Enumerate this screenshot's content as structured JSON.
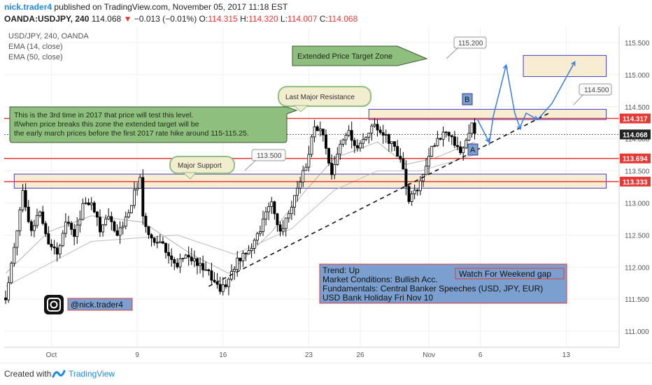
{
  "header": {
    "author": "nick.trader4",
    "published_text": "published on TradingView.com, November 05, 2017 11:18 EST",
    "symbol_line": "OANDA:USDJPY, 240",
    "last_price": "114.068",
    "change": "−0.013 (−0.01%)",
    "o_label": "O:",
    "o_value": "114.315",
    "h_label": "H:",
    "h_value": "114.320",
    "l_label": "L:",
    "l_value": "114.007",
    "c_label": "C:",
    "c_value": "114.068"
  },
  "legend": {
    "symbol": "USD/JPY, 240, OANDA",
    "ema14": "EMA (14, close)",
    "ema50": "EMA (50, close)"
  },
  "annotations": {
    "target_zone": "Extended Price Target Zone",
    "last_major_resistance": "Last Major Resistance",
    "major_support": "Major Support",
    "note_line1": "This is the 3rd time in 2017 that price will test this level.",
    "note_line2": "If/when price breaks this zone the extended target will be",
    "note_line3": "the early march prices before the first 2017 rate hike around 115-115.25.",
    "callout_115200": "115.200",
    "callout_114500": "114.500",
    "callout_113500": "113.500",
    "marker_a": "A",
    "marker_b": "B",
    "info_trend": "Trend: Up",
    "info_market": "Market Conditions: Bullish Acc.",
    "info_fund": "Fundamentals: Central Banker Speeches (USD, JPY, EUR)",
    "info_holiday": "USD Bank Holiday Fri Nov 10",
    "weekend_gap": "Watch For Weekend gap",
    "instagram_handle": "@nick.trader4"
  },
  "footer": {
    "created_with": "Created with",
    "brand": "TradingView"
  },
  "colors": {
    "up": "#000000",
    "down": "#000000",
    "resistance_line": "#e53935",
    "zone_fill": "#f5e6c4",
    "zone_border": "#3f3fbf",
    "callout_green": "#8fbf7f",
    "info_box": "#7b9fcf",
    "arrow_blue": "#3a7be0",
    "ema": "#9e9e9e"
  },
  "chart_data": {
    "type": "candlestick",
    "symbol": "USD/JPY",
    "timeframe": "240",
    "ylim": [
      110.75,
      115.75
    ],
    "y_ticks": [
      111.0,
      111.5,
      112.0,
      112.5,
      113.0,
      113.5,
      114.0,
      114.5,
      115.0,
      115.5
    ],
    "x_ticks": [
      {
        "label": "Oct",
        "idx": 16
      },
      {
        "label": "9",
        "idx": 46
      },
      {
        "label": "16",
        "idx": 76
      },
      {
        "label": "23",
        "idx": 106
      },
      {
        "label": "26",
        "idx": 124
      },
      {
        "label": "Nov",
        "idx": 148
      },
      {
        "label": "6",
        "idx": 166
      },
      {
        "label": "13",
        "idx": 196
      }
    ],
    "n_slots": 215,
    "price_labels": [
      {
        "value": 114.317,
        "text": "114.317",
        "color": "#e53935"
      },
      {
        "value": 114.068,
        "text": "114.068",
        "color": "#222222"
      },
      {
        "value": 113.694,
        "text": "113.694",
        "color": "#e53935"
      },
      {
        "value": 113.333,
        "text": "113.333",
        "color": "#e53935"
      }
    ],
    "horizontal_lines": [
      {
        "value": 114.317,
        "color": "#e53935"
      },
      {
        "value": 113.694,
        "color": "#e53935"
      },
      {
        "value": 113.333,
        "color": "#e53935"
      }
    ],
    "anchors": [
      [
        0,
        111.52
      ],
      [
        3,
        112.3
      ],
      [
        6,
        113.2
      ],
      [
        9,
        112.55
      ],
      [
        12,
        112.9
      ],
      [
        15,
        112.4
      ],
      [
        18,
        112.2
      ],
      [
        21,
        112.75
      ],
      [
        24,
        112.5
      ],
      [
        27,
        112.95
      ],
      [
        30,
        113.05
      ],
      [
        33,
        112.6
      ],
      [
        36,
        112.75
      ],
      [
        39,
        112.5
      ],
      [
        42,
        112.75
      ],
      [
        45,
        113.15
      ],
      [
        47,
        113.4
      ],
      [
        48,
        112.75
      ],
      [
        51,
        112.4
      ],
      [
        54,
        112.45
      ],
      [
        57,
        112.2
      ],
      [
        60,
        112.05
      ],
      [
        63,
        112.2
      ],
      [
        66,
        112.1
      ],
      [
        69,
        111.95
      ],
      [
        72,
        111.85
      ],
      [
        75,
        111.65
      ],
      [
        78,
        111.8
      ],
      [
        81,
        112.1
      ],
      [
        84,
        112.25
      ],
      [
        87,
        112.4
      ],
      [
        90,
        112.7
      ],
      [
        93,
        113.05
      ],
      [
        96,
        112.5
      ],
      [
        99,
        112.85
      ],
      [
        102,
        113.25
      ],
      [
        105,
        113.55
      ],
      [
        108,
        114.2
      ],
      [
        111,
        114.05
      ],
      [
        114,
        113.4
      ],
      [
        117,
        113.9
      ],
      [
        120,
        114.1
      ],
      [
        123,
        113.85
      ],
      [
        126,
        114.05
      ],
      [
        129,
        114.2
      ],
      [
        132,
        114.1
      ],
      [
        135,
        113.9
      ],
      [
        138,
        113.7
      ],
      [
        141,
        113.05
      ],
      [
        144,
        113.2
      ],
      [
        147,
        113.6
      ],
      [
        150,
        113.95
      ],
      [
        153,
        114.1
      ],
      [
        156,
        114.0
      ],
      [
        159,
        113.75
      ],
      [
        161,
        113.95
      ],
      [
        163,
        114.3
      ],
      [
        164,
        114.068
      ]
    ],
    "ema14_anchors": [
      [
        0,
        111.9
      ],
      [
        15,
        112.55
      ],
      [
        30,
        112.8
      ],
      [
        48,
        112.7
      ],
      [
        65,
        112.2
      ],
      [
        78,
        111.9
      ],
      [
        93,
        112.55
      ],
      [
        105,
        113.2
      ],
      [
        115,
        113.7
      ],
      [
        130,
        113.95
      ],
      [
        140,
        113.6
      ],
      [
        150,
        113.7
      ],
      [
        164,
        113.95
      ]
    ],
    "ema50_anchors": [
      [
        0,
        111.7
      ],
      [
        30,
        112.4
      ],
      [
        60,
        112.5
      ],
      [
        80,
        112.2
      ],
      [
        100,
        112.6
      ],
      [
        115,
        113.2
      ],
      [
        130,
        113.5
      ],
      [
        145,
        113.5
      ],
      [
        164,
        113.75
      ]
    ],
    "trendline": {
      "from": [
        71,
        111.7
      ],
      "to": [
        190,
        114.4
      ]
    },
    "zones": [
      {
        "name": "extended_target",
        "from_idx": 181,
        "to_idx": 210,
        "top": 115.3,
        "bottom": 114.97
      },
      {
        "name": "resistance",
        "from_idx": 127,
        "to_idx": 210,
        "top": 114.46,
        "bottom": 114.3
      },
      {
        "name": "support",
        "from_idx": 3,
        "to_idx": 210,
        "top": 113.45,
        "bottom": 113.23
      }
    ]
  }
}
